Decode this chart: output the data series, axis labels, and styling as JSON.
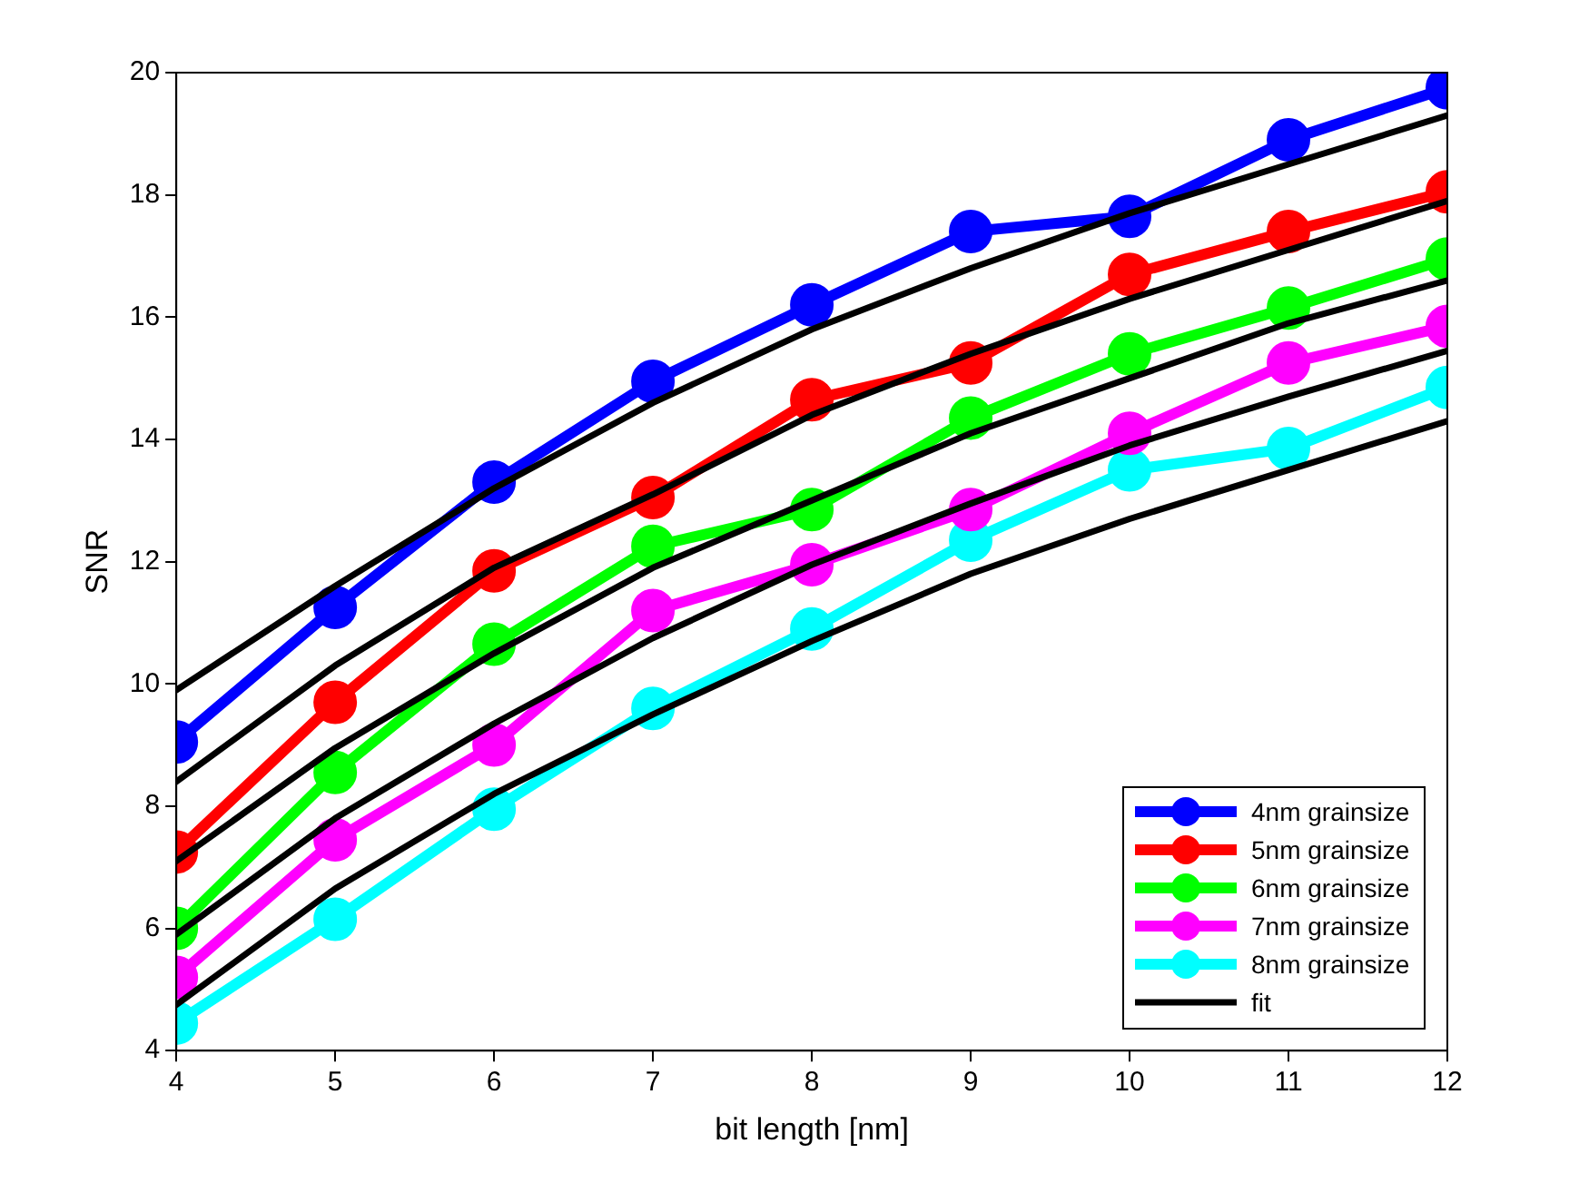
{
  "chart_data": {
    "type": "line",
    "xlabel": "bit length [nm]",
    "ylabel": "SNR",
    "x": [
      4,
      5,
      6,
      7,
      8,
      9,
      10,
      11,
      12
    ],
    "xlim": [
      4,
      12
    ],
    "xticks": [
      4,
      5,
      6,
      7,
      8,
      9,
      10,
      11,
      12
    ],
    "ylim": [
      4,
      20
    ],
    "yticks": [
      4,
      6,
      8,
      10,
      12,
      14,
      16,
      18,
      20
    ],
    "grid": false,
    "legend": "bottom right",
    "series": [
      {
        "name": "4nm grainsize",
        "color": "#0000ff",
        "marker": "circle",
        "values": [
          9.05,
          11.25,
          13.3,
          14.95,
          16.2,
          17.4,
          17.65,
          18.9,
          19.75
        ]
      },
      {
        "name": "5nm grainsize",
        "color": "#ff0000",
        "marker": "circle",
        "values": [
          7.25,
          9.7,
          11.85,
          13.05,
          14.65,
          15.25,
          16.7,
          17.4,
          18.05
        ]
      },
      {
        "name": "6nm grainsize",
        "color": "#00ff00",
        "marker": "circle",
        "values": [
          6.0,
          8.55,
          10.65,
          12.25,
          12.85,
          14.35,
          15.4,
          16.15,
          16.95
        ]
      },
      {
        "name": "7nm grainsize",
        "color": "#ff00ff",
        "marker": "circle",
        "values": [
          5.2,
          7.45,
          9.0,
          11.2,
          11.95,
          12.85,
          14.1,
          15.25,
          15.85
        ]
      },
      {
        "name": "8nm grainsize",
        "color": "#00ffff",
        "marker": "circle",
        "values": [
          4.45,
          6.15,
          7.95,
          9.6,
          10.9,
          12.35,
          13.5,
          13.85,
          14.85
        ]
      },
      {
        "name": "fit",
        "color": "#000000",
        "marker": "none",
        "values": [
          9.9,
          11.6,
          13.2,
          14.6,
          15.8,
          16.8,
          17.7,
          18.5,
          19.3
        ]
      },
      {
        "color": "#000000",
        "marker": "none",
        "values": [
          8.4,
          10.3,
          11.9,
          13.1,
          14.4,
          15.4,
          16.3,
          17.1,
          17.9
        ]
      },
      {
        "color": "#000000",
        "marker": "none",
        "values": [
          7.1,
          8.95,
          10.5,
          11.9,
          13.0,
          14.1,
          15.0,
          15.9,
          16.6
        ]
      },
      {
        "color": "#000000",
        "marker": "none",
        "values": [
          5.9,
          7.8,
          9.35,
          10.75,
          11.95,
          12.95,
          13.9,
          14.7,
          15.45
        ]
      },
      {
        "color": "#000000",
        "marker": "none",
        "values": [
          4.75,
          6.65,
          8.2,
          9.5,
          10.7,
          11.8,
          12.7,
          13.5,
          14.3
        ]
      }
    ]
  }
}
